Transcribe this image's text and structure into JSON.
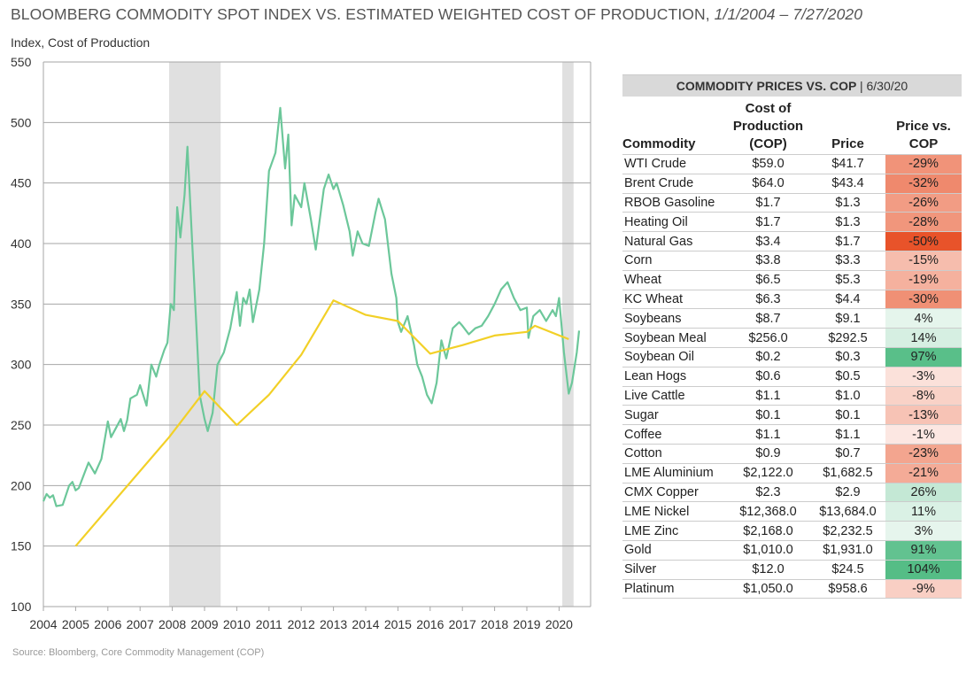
{
  "title": {
    "main": "BLOOMBERG COMMODITY SPOT INDEX VS. ESTIMATED WEIGHTED COST OF PRODUCTION, ",
    "dates": "1/1/2004 – 7/27/2020"
  },
  "source": "Source: Bloomberg, Core Commodity Management (COP)",
  "chart_data": {
    "type": "line",
    "ylabel": "Index, Cost of Production",
    "ylim": [
      100,
      550
    ],
    "yticks": [
      "100",
      "150",
      "200",
      "250",
      "300",
      "350",
      "400",
      "450",
      "500",
      "550"
    ],
    "xlim": [
      2004,
      2021
    ],
    "xticks": [
      "2004",
      "2005",
      "2006",
      "2007",
      "2008",
      "2009",
      "2010",
      "2011",
      "2012",
      "2013",
      "2014",
      "2015",
      "2016",
      "2017",
      "2018",
      "2019",
      "2020"
    ],
    "grid": "horizontal",
    "shaded_periods": [
      [
        2007.9,
        2009.5
      ],
      [
        2020.1,
        2020.45
      ]
    ],
    "colors": {
      "index": "#6cc79a",
      "cop": "#f2d027",
      "shade": "#e0e0e0"
    },
    "series": [
      {
        "key": "index",
        "points": [
          [
            2004.0,
            187
          ],
          [
            2004.1,
            193
          ],
          [
            2004.2,
            190
          ],
          [
            2004.3,
            192
          ],
          [
            2004.4,
            183
          ],
          [
            2004.6,
            184
          ],
          [
            2004.8,
            200
          ],
          [
            2004.9,
            203
          ],
          [
            2005.0,
            196
          ],
          [
            2005.1,
            198
          ],
          [
            2005.3,
            212
          ],
          [
            2005.4,
            219
          ],
          [
            2005.6,
            210
          ],
          [
            2005.8,
            222
          ],
          [
            2006.0,
            253
          ],
          [
            2006.1,
            240
          ],
          [
            2006.2,
            245
          ],
          [
            2006.4,
            255
          ],
          [
            2006.5,
            245
          ],
          [
            2006.6,
            254
          ],
          [
            2006.7,
            272
          ],
          [
            2006.9,
            275
          ],
          [
            2007.0,
            283
          ],
          [
            2007.2,
            266
          ],
          [
            2007.35,
            300
          ],
          [
            2007.5,
            290
          ],
          [
            2007.6,
            300
          ],
          [
            2007.75,
            312
          ],
          [
            2007.85,
            318
          ],
          [
            2007.95,
            350
          ],
          [
            2008.05,
            345
          ],
          [
            2008.15,
            430
          ],
          [
            2008.25,
            405
          ],
          [
            2008.38,
            440
          ],
          [
            2008.47,
            480
          ],
          [
            2008.6,
            410
          ],
          [
            2008.75,
            330
          ],
          [
            2008.85,
            275
          ],
          [
            2009.0,
            255
          ],
          [
            2009.1,
            245
          ],
          [
            2009.25,
            260
          ],
          [
            2009.4,
            300
          ],
          [
            2009.6,
            310
          ],
          [
            2009.8,
            330
          ],
          [
            2010.0,
            360
          ],
          [
            2010.1,
            332
          ],
          [
            2010.2,
            355
          ],
          [
            2010.3,
            350
          ],
          [
            2010.4,
            362
          ],
          [
            2010.5,
            335
          ],
          [
            2010.7,
            362
          ],
          [
            2010.85,
            400
          ],
          [
            2011.0,
            460
          ],
          [
            2011.2,
            475
          ],
          [
            2011.35,
            512
          ],
          [
            2011.5,
            462
          ],
          [
            2011.6,
            490
          ],
          [
            2011.7,
            415
          ],
          [
            2011.8,
            440
          ],
          [
            2012.0,
            430
          ],
          [
            2012.1,
            450
          ],
          [
            2012.3,
            420
          ],
          [
            2012.45,
            395
          ],
          [
            2012.7,
            445
          ],
          [
            2012.85,
            457
          ],
          [
            2013.0,
            445
          ],
          [
            2013.1,
            450
          ],
          [
            2013.3,
            432
          ],
          [
            2013.5,
            410
          ],
          [
            2013.6,
            390
          ],
          [
            2013.75,
            410
          ],
          [
            2013.9,
            400
          ],
          [
            2014.1,
            398
          ],
          [
            2014.3,
            425
          ],
          [
            2014.4,
            437
          ],
          [
            2014.6,
            420
          ],
          [
            2014.8,
            375
          ],
          [
            2014.95,
            355
          ],
          [
            2015.0,
            335
          ],
          [
            2015.1,
            327
          ],
          [
            2015.3,
            340
          ],
          [
            2015.5,
            316
          ],
          [
            2015.6,
            300
          ],
          [
            2015.75,
            290
          ],
          [
            2015.9,
            275
          ],
          [
            2016.05,
            268
          ],
          [
            2016.2,
            285
          ],
          [
            2016.35,
            320
          ],
          [
            2016.5,
            305
          ],
          [
            2016.7,
            330
          ],
          [
            2016.9,
            335
          ],
          [
            2017.0,
            332
          ],
          [
            2017.2,
            325
          ],
          [
            2017.4,
            330
          ],
          [
            2017.6,
            332
          ],
          [
            2017.8,
            340
          ],
          [
            2018.0,
            350
          ],
          [
            2018.2,
            362
          ],
          [
            2018.4,
            368
          ],
          [
            2018.6,
            355
          ],
          [
            2018.8,
            345
          ],
          [
            2019.0,
            347
          ],
          [
            2019.05,
            322
          ],
          [
            2019.2,
            340
          ],
          [
            2019.4,
            345
          ],
          [
            2019.6,
            336
          ],
          [
            2019.8,
            345
          ],
          [
            2019.9,
            340
          ],
          [
            2020.0,
            355
          ],
          [
            2020.15,
            310
          ],
          [
            2020.3,
            276
          ],
          [
            2020.4,
            285
          ],
          [
            2020.55,
            310
          ],
          [
            2020.62,
            328
          ]
        ]
      },
      {
        "key": "cop",
        "points": [
          [
            2005.0,
            150
          ],
          [
            2007.9,
            240
          ],
          [
            2009.0,
            278
          ],
          [
            2010.0,
            250
          ],
          [
            2011.0,
            275
          ],
          [
            2012.0,
            308
          ],
          [
            2013.0,
            353
          ],
          [
            2014.0,
            341
          ],
          [
            2015.0,
            336
          ],
          [
            2016.0,
            309
          ],
          [
            2017.0,
            316
          ],
          [
            2018.0,
            324
          ],
          [
            2019.0,
            327
          ],
          [
            2019.25,
            332
          ],
          [
            2020.3,
            321
          ]
        ]
      }
    ]
  },
  "table": {
    "title": "COMMODITY PRICES VS. COP",
    "date": "6/30/20",
    "headers": {
      "commodity": "Commodity",
      "cop1": "Cost of",
      "cop2": "Production",
      "cop3": "(COP)",
      "price": "Price",
      "pvc1": "Price vs.",
      "pvc2": "COP"
    },
    "neg_color": "#e8532a",
    "pos_color": "#55bd86",
    "rows": [
      {
        "name": "WTI Crude",
        "cop": "$59.0",
        "price": "$41.7",
        "pct": "-29%",
        "v": -29
      },
      {
        "name": "Brent Crude",
        "cop": "$64.0",
        "price": "$43.4",
        "pct": "-32%",
        "v": -32
      },
      {
        "name": "RBOB Gasoline",
        "cop": "$1.7",
        "price": "$1.3",
        "pct": "-26%",
        "v": -26
      },
      {
        "name": "Heating Oil",
        "cop": "$1.7",
        "price": "$1.3",
        "pct": "-28%",
        "v": -28
      },
      {
        "name": "Natural Gas",
        "cop": "$3.4",
        "price": "$1.7",
        "pct": "-50%",
        "v": -50
      },
      {
        "name": "Corn",
        "cop": "$3.8",
        "price": "$3.3",
        "pct": "-15%",
        "v": -15
      },
      {
        "name": "Wheat",
        "cop": "$6.5",
        "price": "$5.3",
        "pct": "-19%",
        "v": -19
      },
      {
        "name": "KC Wheat",
        "cop": "$6.3",
        "price": "$4.4",
        "pct": "-30%",
        "v": -30
      },
      {
        "name": "Soybeans",
        "cop": "$8.7",
        "price": "$9.1",
        "pct": "4%",
        "v": 4
      },
      {
        "name": "Soybean Meal",
        "cop": "$256.0",
        "price": "$292.5",
        "pct": "14%",
        "v": 14
      },
      {
        "name": "Soybean Oil",
        "cop": "$0.2",
        "price": "$0.3",
        "pct": "97%",
        "v": 97
      },
      {
        "name": "Lean Hogs",
        "cop": "$0.6",
        "price": "$0.5",
        "pct": "-3%",
        "v": -3
      },
      {
        "name": "Live Cattle",
        "cop": "$1.1",
        "price": "$1.0",
        "pct": "-8%",
        "v": -8
      },
      {
        "name": "Sugar",
        "cop": "$0.1",
        "price": "$0.1",
        "pct": "-13%",
        "v": -13
      },
      {
        "name": "Coffee",
        "cop": "$1.1",
        "price": "$1.1",
        "pct": "-1%",
        "v": -1
      },
      {
        "name": "Cotton",
        "cop": "$0.9",
        "price": "$0.7",
        "pct": "-23%",
        "v": -23
      },
      {
        "name": "LME Aluminium",
        "cop": "$2,122.0",
        "price": "$1,682.5",
        "pct": "-21%",
        "v": -21
      },
      {
        "name": "CMX Copper",
        "cop": "$2.3",
        "price": "$2.9",
        "pct": "26%",
        "v": 26
      },
      {
        "name": "LME Nickel",
        "cop": "$12,368.0",
        "price": "$13,684.0",
        "pct": "11%",
        "v": 11
      },
      {
        "name": "LME Zinc",
        "cop": "$2,168.0",
        "price": "$2,232.5",
        "pct": "3%",
        "v": 3
      },
      {
        "name": "Gold",
        "cop": "$1,010.0",
        "price": "$1,931.0",
        "pct": "91%",
        "v": 91
      },
      {
        "name": "Silver",
        "cop": "$12.0",
        "price": "$24.5",
        "pct": "104%",
        "v": 104
      },
      {
        "name": "Platinum",
        "cop": "$1,050.0",
        "price": "$958.6",
        "pct": "-9%",
        "v": -9
      }
    ]
  }
}
